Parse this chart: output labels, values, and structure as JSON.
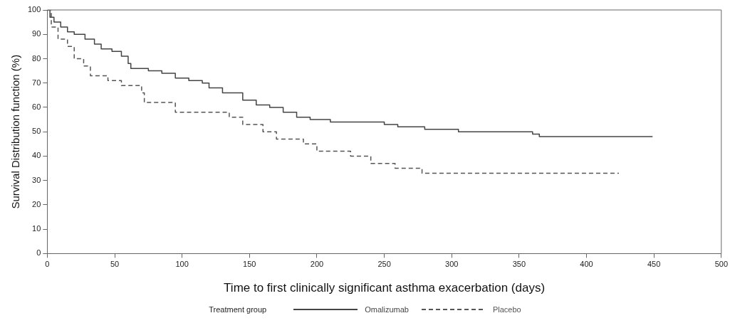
{
  "chart_data": {
    "type": "step",
    "xlabel": "Time to first clinically significant asthma exacerbation (days)",
    "ylabel": "Survival Distribution function (%)",
    "legend_title": "Treatment group",
    "legend": "bottom",
    "xlim": [
      0,
      500
    ],
    "xticks": [
      0,
      50,
      100,
      150,
      200,
      250,
      300,
      350,
      400,
      450,
      500
    ],
    "ylim": [
      0,
      100
    ],
    "yticks": [
      0,
      10,
      20,
      30,
      40,
      50,
      60,
      70,
      80,
      90,
      100
    ],
    "grid": false,
    "marker": "none",
    "series": [
      {
        "name": "Omalizumab",
        "color": "#444444",
        "line_style": "solid",
        "x": [
          0,
          2,
          5,
          10,
          15,
          20,
          28,
          35,
          40,
          48,
          55,
          60,
          62,
          75,
          85,
          95,
          105,
          115,
          120,
          130,
          145,
          155,
          165,
          175,
          185,
          195,
          210,
          250,
          260,
          280,
          305,
          360,
          365,
          449
        ],
        "values": [
          100,
          97,
          95,
          93,
          91,
          90,
          88,
          86,
          84,
          83,
          81,
          78,
          76,
          75,
          74,
          72,
          71,
          70,
          68,
          66,
          63,
          61,
          60,
          58,
          56,
          55,
          54,
          53,
          52,
          51,
          50,
          49,
          48,
          48
        ]
      },
      {
        "name": "Placebo",
        "color": "#555555",
        "line_style": "dashed",
        "x": [
          0,
          3,
          8,
          15,
          20,
          27,
          32,
          45,
          55,
          70,
          72,
          95,
          135,
          145,
          160,
          170,
          190,
          200,
          225,
          240,
          258,
          278,
          424
        ],
        "values": [
          100,
          93,
          88,
          85,
          80,
          77,
          73,
          71,
          69,
          66,
          62,
          58,
          56,
          53,
          50,
          47,
          45,
          42,
          40,
          37,
          35,
          33,
          33
        ]
      }
    ]
  }
}
